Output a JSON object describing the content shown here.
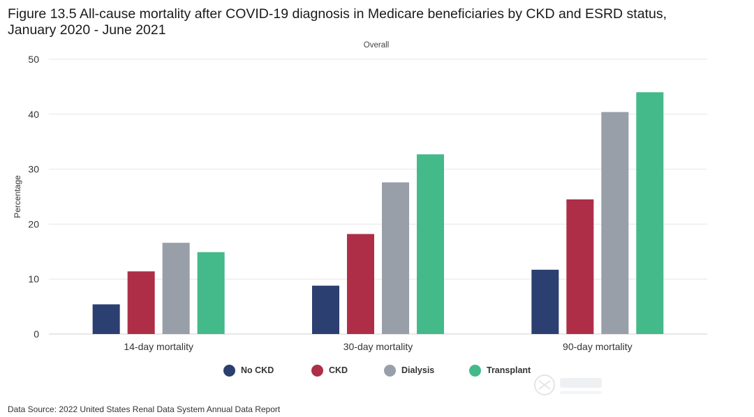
{
  "header": {
    "title_line1": "Figure 13.5 All-cause mortality after COVID-19 diagnosis in Medicare beneficiaries by CKD and ESRD status,",
    "title_line2": "January 2020 - June 2021"
  },
  "footer": {
    "source": "Data Source: 2022 United States Renal Data System Annual Data Report"
  },
  "chart_data": {
    "type": "bar",
    "title": "Overall",
    "xlabel": "",
    "ylabel": "Percentage",
    "ylim": [
      0,
      50
    ],
    "yticks": [
      0,
      10,
      20,
      30,
      40,
      50
    ],
    "grid": true,
    "legend_position": "bottom",
    "categories": [
      "14-day mortality",
      "30-day mortality",
      "90-day mortality"
    ],
    "series": [
      {
        "name": "No CKD",
        "color": "#2b3f70",
        "values": [
          5.4,
          8.8,
          11.7
        ]
      },
      {
        "name": "CKD",
        "color": "#ae2e48",
        "values": [
          11.4,
          18.2,
          24.5
        ]
      },
      {
        "name": "Dialysis",
        "color": "#989fa9",
        "values": [
          16.6,
          27.6,
          40.4
        ]
      },
      {
        "name": "Transplant",
        "color": "#44b98a",
        "values": [
          14.9,
          32.7,
          44.0
        ]
      }
    ]
  }
}
